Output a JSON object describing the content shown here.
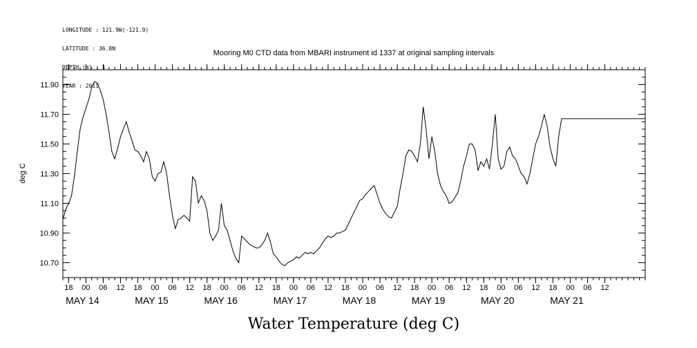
{
  "meta": {
    "longitude": "LONGITUDE : 121.9W(-121.9)",
    "latitude": "LATITUDE : 36.8N",
    "depth": "DEPTH (m) : 1",
    "year": "YEAR : 2011"
  },
  "chart_data": {
    "type": "line",
    "title": "Mooring M0 CTD data from MBARI instrument id 1337 at original sampling intervals",
    "ylabel": "deg C",
    "xlabel": "Water Temperature (deg C)",
    "ylim": [
      10.6,
      12.0
    ],
    "yticks": [
      "11.90",
      "11.70",
      "11.50",
      "11.30",
      "11.10",
      "10.90",
      "10.70"
    ],
    "x_hour_labels": [
      "18",
      "00",
      "06",
      "12",
      "18",
      "00",
      "06",
      "12",
      "18",
      "00",
      "06",
      "12",
      "18",
      "00",
      "06",
      "12",
      "18",
      "00",
      "06",
      "12",
      "18",
      "00",
      "06",
      "12",
      "18",
      "00",
      "06",
      "12",
      "18",
      "00",
      "06",
      "12"
    ],
    "x_day_labels": [
      "MAY 14",
      "MAY 15",
      "MAY 16",
      "MAY 17",
      "MAY 18",
      "MAY 19",
      "MAY 20",
      "MAY 21"
    ],
    "x_unit": "hours since 2011-05-13 16:00",
    "xlim": [
      0,
      202
    ],
    "series": [
      {
        "x": [
          0,
          1,
          2,
          3,
          4,
          5,
          6,
          7,
          8,
          9,
          10,
          11,
          12,
          13,
          14,
          15,
          16,
          17,
          18,
          19,
          20,
          21,
          22,
          23,
          24,
          25,
          26,
          27,
          28,
          29,
          30,
          31,
          32,
          33,
          34,
          35,
          36,
          37,
          38,
          39,
          40,
          41,
          42,
          43,
          44,
          45,
          46,
          47,
          48,
          49,
          50,
          51,
          52,
          53,
          54,
          55,
          56,
          57,
          58,
          59,
          60,
          61,
          62,
          63,
          64,
          65,
          66,
          67,
          68,
          69,
          70,
          71,
          72,
          73,
          74,
          75,
          76,
          77,
          78,
          79,
          80,
          81,
          82,
          83,
          84,
          85,
          86,
          87,
          88,
          89,
          90,
          91,
          92,
          93,
          94,
          95,
          96,
          97,
          98,
          99,
          100,
          101,
          102,
          103,
          104,
          105,
          106,
          107,
          108,
          109,
          110,
          111,
          112,
          113,
          114,
          115,
          116,
          117,
          118,
          119,
          120,
          121,
          122,
          123,
          124,
          125,
          126,
          127,
          128,
          129,
          130,
          131,
          132,
          133,
          134,
          135,
          136,
          137,
          138,
          139,
          140,
          141,
          142,
          143,
          144,
          145,
          146,
          147,
          148,
          149,
          150,
          151,
          152,
          153,
          154,
          155,
          156,
          157,
          158,
          159,
          160,
          161,
          162,
          163,
          164,
          165,
          166,
          167,
          168,
          169,
          170,
          171,
          172,
          173,
          174,
          175,
          176,
          177,
          178,
          179,
          180,
          181,
          182,
          183,
          184,
          185,
          186,
          187,
          188,
          189,
          190,
          191,
          192,
          193,
          194,
          195,
          196,
          197,
          198,
          199,
          200,
          201,
          202
        ],
        "values": [
          10.99,
          11.06,
          11.1,
          11.15,
          11.28,
          11.45,
          11.6,
          11.68,
          11.74,
          11.8,
          11.88,
          11.92,
          11.91,
          11.86,
          11.8,
          11.7,
          11.58,
          11.45,
          11.4,
          11.47,
          11.55,
          11.6,
          11.65,
          11.58,
          11.52,
          11.46,
          11.45,
          11.42,
          11.38,
          11.45,
          11.4,
          11.28,
          11.25,
          11.3,
          11.31,
          11.38,
          11.3,
          11.15,
          11.02,
          10.93,
          10.99,
          11.0,
          11.02,
          11.0,
          10.98,
          11.28,
          11.25,
          11.1,
          11.15,
          11.12,
          11.05,
          10.9,
          10.85,
          10.88,
          10.92,
          11.1,
          10.95,
          10.92,
          10.85,
          10.78,
          10.73,
          10.7,
          10.88,
          10.86,
          10.84,
          10.82,
          10.81,
          10.8,
          10.8,
          10.82,
          10.85,
          10.9,
          10.84,
          10.76,
          10.74,
          10.71,
          10.69,
          10.68,
          10.7,
          10.71,
          10.72,
          10.74,
          10.73,
          10.75,
          10.77,
          10.76,
          10.77,
          10.76,
          10.78,
          10.8,
          10.83,
          10.86,
          10.88,
          10.87,
          10.88,
          10.9,
          10.9,
          10.91,
          10.92,
          10.96,
          11.0,
          11.04,
          11.08,
          11.12,
          11.13,
          11.16,
          11.18,
          11.2,
          11.22,
          11.16,
          11.1,
          11.06,
          11.03,
          11.01,
          11.0,
          11.04,
          11.08,
          11.2,
          11.3,
          11.42,
          11.46,
          11.45,
          11.42,
          11.38,
          11.5,
          11.75,
          11.6,
          11.4,
          11.55,
          11.45,
          11.3,
          11.22,
          11.18,
          11.15,
          11.1,
          11.11,
          11.14,
          11.17,
          11.25,
          11.35,
          11.42,
          11.5,
          11.5,
          11.46,
          11.32,
          11.38,
          11.35,
          11.4,
          11.33,
          11.5,
          11.7,
          11.4,
          11.33,
          11.35,
          11.45,
          11.48,
          11.42,
          11.4,
          11.35,
          11.3,
          11.28,
          11.23,
          11.3,
          11.4,
          11.5,
          11.55,
          11.62,
          11.7,
          11.62,
          11.48,
          11.4,
          11.35,
          11.55,
          11.67,
          11.67,
          11.67,
          11.67,
          11.67,
          11.67,
          11.67,
          11.67,
          11.67,
          11.67,
          11.67,
          11.67,
          11.67,
          11.67,
          11.67,
          11.67,
          11.67,
          11.67,
          11.67,
          11.67,
          11.67,
          11.67,
          11.67,
          11.67,
          11.67,
          11.67,
          11.67,
          11.67,
          11.67,
          11.67
        ]
      }
    ],
    "grid": false
  }
}
